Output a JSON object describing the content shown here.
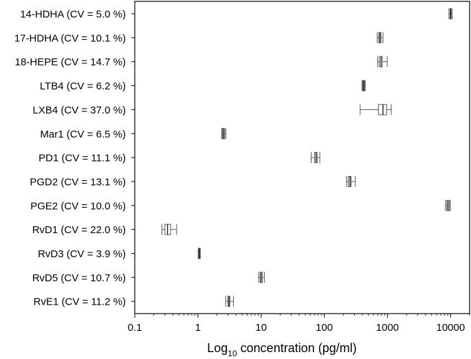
{
  "chart_data": {
    "type": "boxplot",
    "orientation": "horizontal",
    "title": "",
    "xlabel": {
      "prefix": "Log",
      "sub": "10",
      "suffix": " concentration (pg/ml)"
    },
    "ylabel": "",
    "xscale": "log",
    "xlim": [
      0.1,
      20000
    ],
    "xticks": [
      {
        "value": 0.1,
        "label": "0.1"
      },
      {
        "value": 1,
        "label": "1"
      },
      {
        "value": 10,
        "label": "10"
      },
      {
        "value": 100,
        "label": "100"
      },
      {
        "value": 1000,
        "label": "1000"
      },
      {
        "value": 10000,
        "label": "10000"
      }
    ],
    "grid": false,
    "legend": "none",
    "categories": [
      "14-HDHA (CV = 5.0 %)",
      "17-HDHA (CV = 10.1 %)",
      "18-HEPE (CV = 14.7 %)",
      "LTB4 (CV = 6.2 %)",
      "LXB4 (CV = 37.0 %)",
      "Mar1 (CV = 6.5 %)",
      "PD1 (CV = 11.1 %)",
      "PGD2 (CV = 13.1 %)",
      "PGE2  (CV = 10.0 %)",
      "RvD1 (CV = 22.0 %)",
      "RvD3 (CV = 3.9 %)",
      "RvD5 (CV = 10.7 %)",
      "RvE1 (CV = 11.2 %)"
    ],
    "boxes": [
      {
        "min": 9400,
        "q1": 9800,
        "median": 10000,
        "q3": 10200,
        "max": 10600
      },
      {
        "min": 690,
        "q1": 730,
        "median": 760,
        "q3": 790,
        "max": 850
      },
      {
        "min": 700,
        "q1": 745,
        "median": 790,
        "q3": 830,
        "max": 990
      },
      {
        "min": 395,
        "q1": 408,
        "median": 420,
        "q3": 432,
        "max": 445
      },
      {
        "min": 370,
        "q1": 720,
        "median": 850,
        "q3": 970,
        "max": 1150
      },
      {
        "min": 2.38,
        "q1": 2.45,
        "median": 2.55,
        "q3": 2.65,
        "max": 2.76
      },
      {
        "min": 62,
        "q1": 70,
        "median": 74,
        "q3": 77,
        "max": 85
      },
      {
        "min": 225,
        "q1": 240,
        "median": 255,
        "q3": 265,
        "max": 310
      },
      {
        "min": 8300,
        "q1": 8700,
        "median": 9100,
        "q3": 9600,
        "max": 9900
      },
      {
        "min": 0.27,
        "q1": 0.3,
        "median": 0.33,
        "q3": 0.37,
        "max": 0.46
      },
      {
        "min": 1.01,
        "q1": 1.03,
        "median": 1.05,
        "q3": 1.07,
        "max": 1.09
      },
      {
        "min": 9.1,
        "q1": 9.6,
        "median": 10.0,
        "q3": 10.5,
        "max": 11.3
      },
      {
        "min": 2.75,
        "q1": 2.98,
        "median": 3.1,
        "q3": 3.2,
        "max": 3.65
      }
    ]
  }
}
